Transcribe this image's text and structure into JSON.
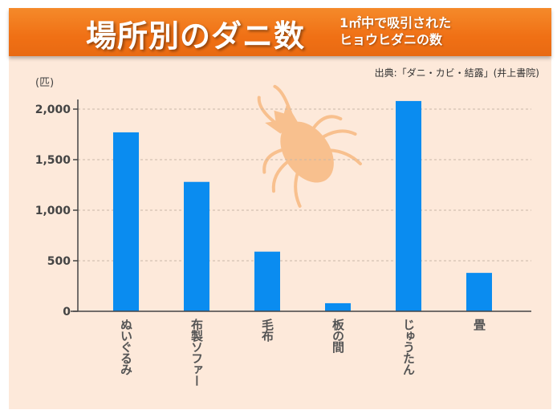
{
  "header": {
    "title": "場所別のダニ数",
    "subtitle_line1": "1㎡中で吸引された",
    "subtitle_line2": "ヒョウヒダニの数"
  },
  "source": "出典:「ダニ・カビ・結露」(井上書院)",
  "colors": {
    "bar": "#0a8cf0",
    "header": "#f07a1e",
    "background": "#fde9da",
    "mite": "#f8c08e"
  },
  "icon": "mite-icon",
  "chart_data": {
    "type": "bar",
    "title": "場所別のダニ数",
    "ylabel": "(匹)",
    "xlabel": "",
    "categories": [
      "ぬいぐるみ",
      "布製ソファー",
      "毛布",
      "板の間",
      "じゅうたん",
      "畳"
    ],
    "values": [
      1770,
      1280,
      590,
      80,
      2080,
      380
    ],
    "ylim": [
      0,
      2000
    ],
    "yticks": [
      0,
      500,
      1000,
      1500,
      2000
    ],
    "ytick_labels": [
      "0",
      "500",
      "1,000",
      "1,500",
      "2,000"
    ],
    "grid": true
  }
}
